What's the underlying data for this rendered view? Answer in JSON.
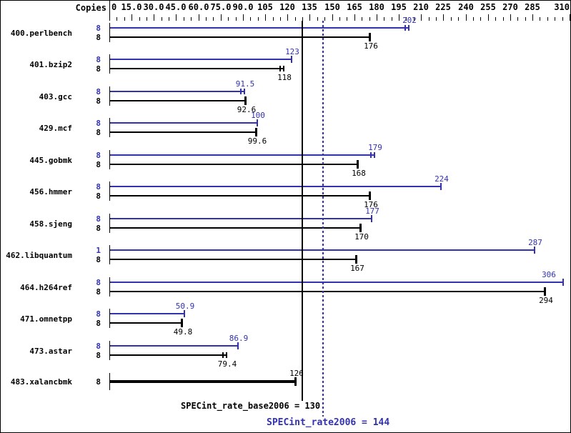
{
  "header": {
    "copies_label": "Copies"
  },
  "colors": {
    "peak": "#3232b0",
    "base": "#000000"
  },
  "chart_data": {
    "type": "bar",
    "orientation": "horizontal",
    "title": "",
    "xlabel": "",
    "ylabel": "Copies",
    "axis": {
      "min": 0,
      "max": 310,
      "minor_step": 5,
      "major_values": [
        0,
        15,
        30,
        45,
        60,
        75,
        90,
        105,
        120,
        135,
        150,
        165,
        180,
        195,
        210,
        225,
        240,
        255,
        270,
        285,
        310
      ],
      "major_labels": [
        "0",
        "15.0",
        "30.0",
        "45.0",
        "60.0",
        "75.0",
        "90.0",
        "105",
        "120",
        "135",
        "150",
        "165",
        "180",
        "195",
        "210",
        "225",
        "240",
        "255",
        "270",
        "285",
        "310"
      ]
    },
    "series": [
      {
        "name": "peak",
        "color_key": "peak"
      },
      {
        "name": "base",
        "color_key": "base"
      }
    ],
    "benchmarks": [
      {
        "name": "400.perlbench",
        "copies_peak": "8",
        "copies_base": "8",
        "peak": "202",
        "base": "176",
        "peak_cap": "double",
        "base_cap": "single"
      },
      {
        "name": "401.bzip2",
        "copies_peak": "8",
        "copies_base": "8",
        "peak": "123",
        "base": "118",
        "peak_cap": "single",
        "base_cap": "double"
      },
      {
        "name": "403.gcc",
        "copies_peak": "8",
        "copies_base": "8",
        "peak": "91.5",
        "base": "92.6",
        "peak_cap": "double",
        "base_cap": "single"
      },
      {
        "name": "429.mcf",
        "copies_peak": "8",
        "copies_base": "8",
        "peak": "100",
        "base": "99.6",
        "peak_cap": "single",
        "base_cap": "single"
      },
      {
        "name": "445.gobmk",
        "copies_peak": "8",
        "copies_base": "8",
        "peak": "179",
        "base": "168",
        "peak_cap": "double",
        "base_cap": "single"
      },
      {
        "name": "456.hmmer",
        "copies_peak": "8",
        "copies_base": "8",
        "peak": "224",
        "base": "176",
        "peak_cap": "single",
        "base_cap": "single"
      },
      {
        "name": "458.sjeng",
        "copies_peak": "8",
        "copies_base": "8",
        "peak": "177",
        "base": "170",
        "peak_cap": "single",
        "base_cap": "single"
      },
      {
        "name": "462.libquantum",
        "copies_peak": "1",
        "copies_base": "8",
        "peak": "287",
        "base": "167",
        "peak_cap": "single",
        "base_cap": "single"
      },
      {
        "name": "464.h264ref",
        "copies_peak": "8",
        "copies_base": "8",
        "peak": "306",
        "base": "294",
        "peak_cap": "single",
        "base_cap": "single"
      },
      {
        "name": "471.omnetpp",
        "copies_peak": "8",
        "copies_base": "8",
        "peak": "50.9",
        "base": "49.8",
        "peak_cap": "single",
        "base_cap": "single"
      },
      {
        "name": "473.astar",
        "copies_peak": "8",
        "copies_base": "8",
        "peak": "86.9",
        "base": "79.4",
        "peak_cap": "single",
        "base_cap": "double"
      },
      {
        "name": "483.xalancbmk",
        "copies_base": "8",
        "base": "126",
        "base_cap": "single",
        "single_bar": true
      }
    ],
    "reference_lines": {
      "base": {
        "value": 130,
        "label": "SPECint_rate_base2006 = 130",
        "style": "solid"
      },
      "peak": {
        "value": 144,
        "label": "SPECint_rate2006 = 144",
        "style": "dotted"
      }
    }
  },
  "footer": {
    "base_text": "SPECint_rate_base2006 = 130",
    "peak_text": "SPECint_rate2006 = 144"
  }
}
